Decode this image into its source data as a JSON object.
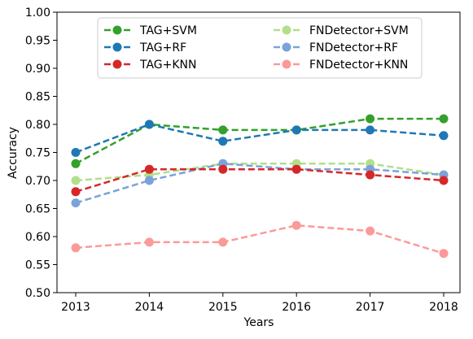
{
  "chart_data": {
    "type": "line",
    "x": [
      "2013",
      "2014",
      "2015",
      "2016",
      "2017",
      "2018"
    ],
    "xlabel": "Years",
    "ylabel": "Accuracy",
    "ylim": [
      0.5,
      1.0
    ],
    "yticks": [
      "0.50",
      "0.55",
      "0.60",
      "0.65",
      "0.70",
      "0.75",
      "0.80",
      "0.85",
      "0.90",
      "0.95",
      "1.00"
    ],
    "grid": false,
    "legend_position": "top",
    "series": [
      {
        "name": "TAG+SVM",
        "color": "#33a02c",
        "values": [
          0.73,
          0.8,
          0.79,
          0.79,
          0.81,
          0.81
        ]
      },
      {
        "name": "FNDetector+SVM",
        "color": "#b2df8a",
        "values": [
          0.7,
          0.71,
          0.73,
          0.73,
          0.73,
          0.71
        ]
      },
      {
        "name": "TAG+RF",
        "color": "#1f78b4",
        "values": [
          0.75,
          0.8,
          0.77,
          0.79,
          0.79,
          0.78
        ]
      },
      {
        "name": "FNDetector+RF",
        "color": "#7ba3d9",
        "values": [
          0.66,
          0.7,
          0.73,
          0.72,
          0.72,
          0.71
        ]
      },
      {
        "name": "TAG+KNN",
        "color": "#d62728",
        "values": [
          0.68,
          0.72,
          0.72,
          0.72,
          0.71,
          0.7
        ]
      },
      {
        "name": "FNDetector+KNN",
        "color": "#fb9a99",
        "values": [
          0.58,
          0.59,
          0.59,
          0.62,
          0.61,
          0.57
        ]
      }
    ]
  }
}
